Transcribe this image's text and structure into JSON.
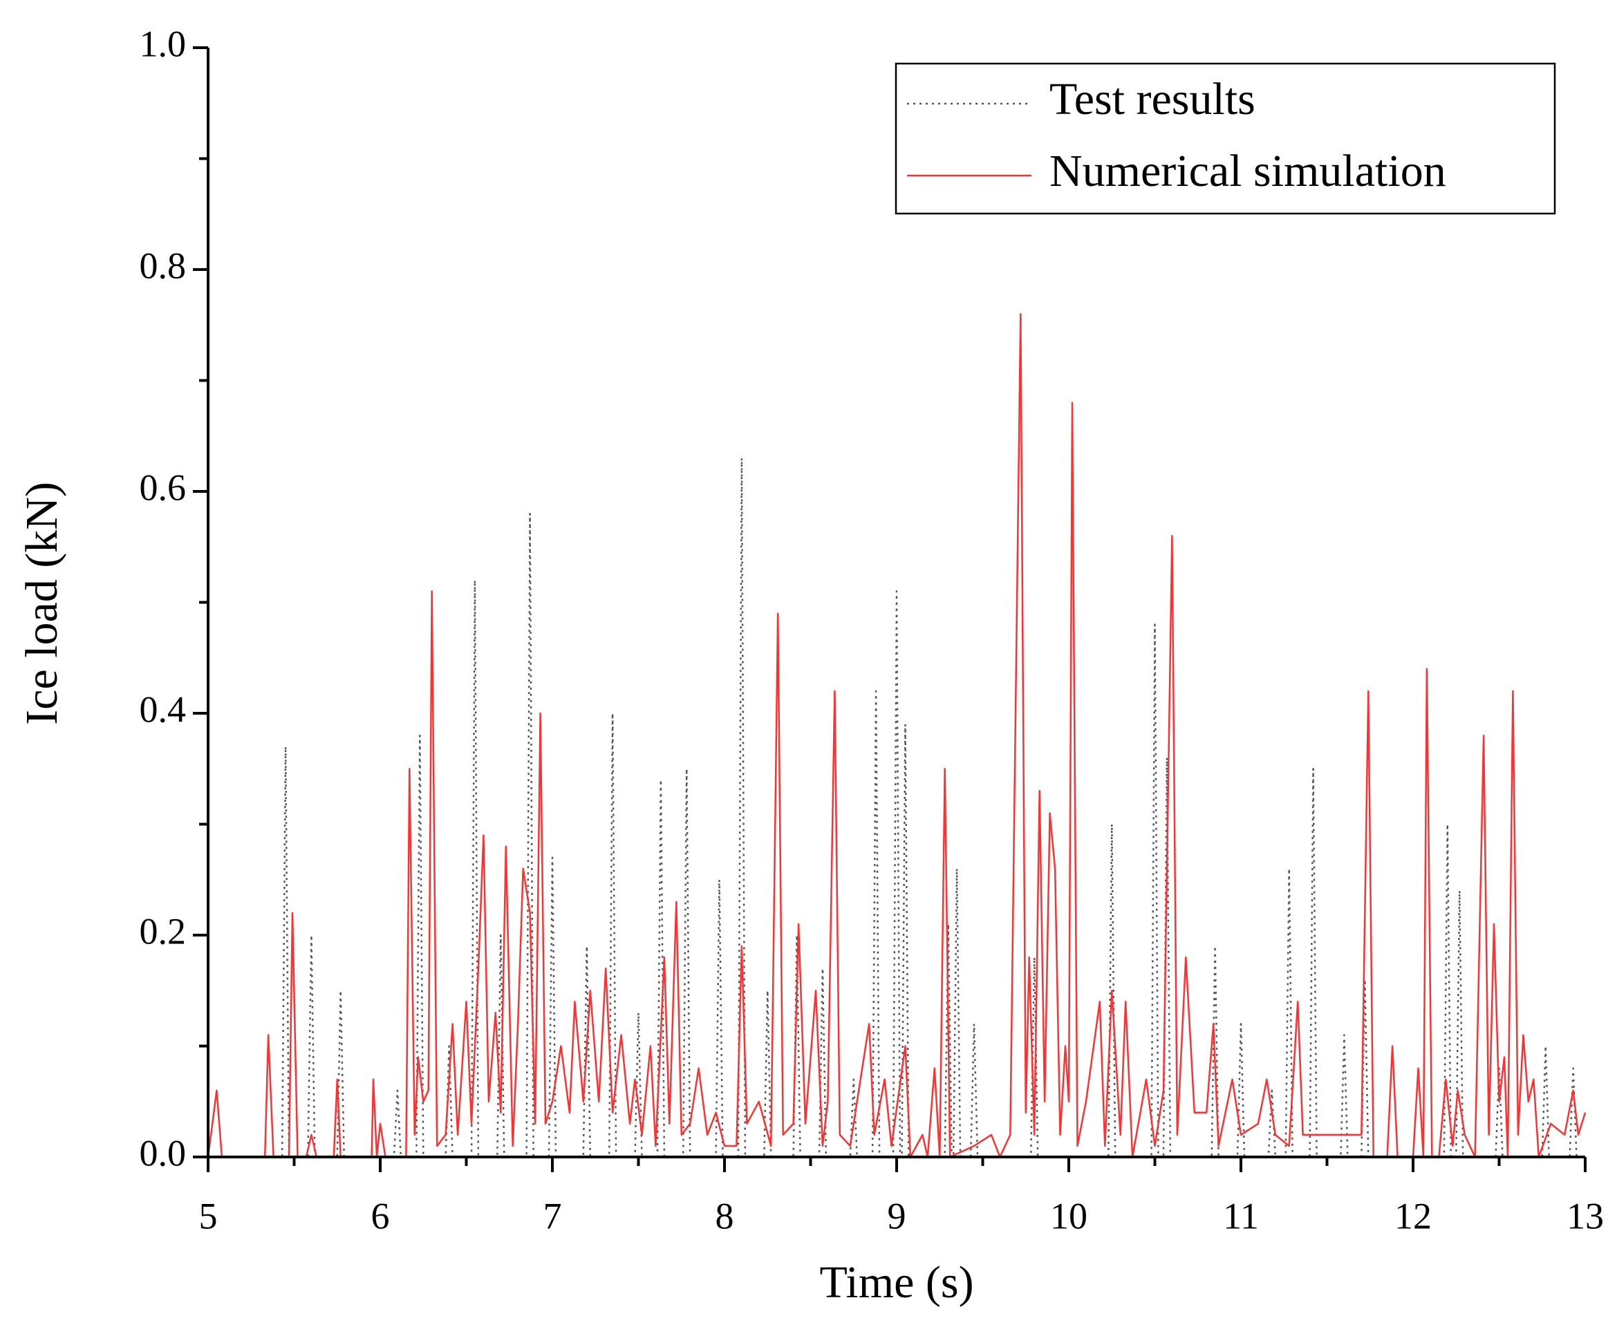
{
  "chart_data": {
    "type": "line",
    "xlabel": "Time (s)",
    "ylabel": "Ice load (kN)",
    "xlim": [
      5,
      13
    ],
    "xticks": [
      5,
      6,
      7,
      8,
      9,
      10,
      11,
      12,
      13
    ],
    "ylim": [
      0,
      1
    ],
    "yticks": [
      {
        "value": 0,
        "label": "0.0"
      },
      0.2,
      0.4,
      0.6,
      0.8,
      {
        "value": 1,
        "label": "1.0"
      }
    ],
    "legend": "upper right",
    "series": [
      {
        "name": "Test results",
        "color": "#555555",
        "linestyle": "dotted",
        "x": [
          5,
          5.43,
          5.45,
          5.47,
          5.58,
          5.6,
          5.62,
          5.75,
          5.77,
          5.79,
          6.08,
          6.1,
          6.12,
          6.21,
          6.23,
          6.25,
          6.38,
          6.4,
          6.42,
          6.53,
          6.55,
          6.57,
          6.68,
          6.7,
          6.72,
          6.85,
          6.87,
          6.89,
          6.98,
          7,
          7.02,
          7.18,
          7.2,
          7.22,
          7.33,
          7.35,
          7.37,
          7.48,
          7.5,
          7.52,
          7.61,
          7.63,
          7.65,
          7.76,
          7.78,
          7.8,
          7.95,
          7.97,
          7.99,
          8.08,
          8.1,
          8.12,
          8.23,
          8.25,
          8.27,
          8.4,
          8.42,
          8.44,
          8.55,
          8.57,
          8.59,
          8.73,
          8.75,
          8.77,
          8.86,
          8.88,
          8.9,
          8.98,
          9,
          9.02,
          9.03,
          9.05,
          9.07,
          9.28,
          9.3,
          9.32,
          9.33,
          9.35,
          9.37,
          9.43,
          9.45,
          9.47,
          9.78,
          9.8,
          9.82,
          10.23,
          10.25,
          10.27,
          10.48,
          10.5,
          10.52,
          10.55,
          10.57,
          10.59,
          10.83,
          10.85,
          10.87,
          10.98,
          11,
          11.02,
          11.16,
          11.18,
          11.2,
          11.26,
          11.28,
          11.3,
          11.4,
          11.42,
          11.44,
          11.58,
          11.6,
          11.62,
          11.7,
          11.72,
          11.74,
          12.18,
          12.2,
          12.22,
          12.25,
          12.27,
          12.29,
          12.48,
          12.5,
          12.52,
          12.75,
          12.77,
          12.79,
          12.91,
          12.93,
          12.95,
          13
        ],
        "values": [
          0,
          0,
          0.37,
          0,
          0,
          0.2,
          0,
          0,
          0.15,
          0,
          0,
          0.06,
          0,
          0,
          0.38,
          0,
          0,
          0.1,
          0,
          0,
          0.52,
          0,
          0,
          0.2,
          0,
          0,
          0.58,
          0,
          0,
          0.27,
          0,
          0,
          0.19,
          0,
          0,
          0.4,
          0,
          0,
          0.13,
          0,
          0,
          0.34,
          0,
          0,
          0.35,
          0,
          0,
          0.25,
          0,
          0,
          0.63,
          0,
          0,
          0.15,
          0,
          0,
          0.2,
          0,
          0,
          0.17,
          0,
          0,
          0.07,
          0,
          0,
          0.42,
          0,
          0,
          0.51,
          0,
          0,
          0.39,
          0,
          0,
          0.21,
          0,
          0,
          0.26,
          0,
          0,
          0.12,
          0,
          0,
          0.18,
          0,
          0,
          0.3,
          0,
          0,
          0.48,
          0,
          0,
          0.36,
          0,
          0,
          0.19,
          0,
          0,
          0.12,
          0,
          0,
          0.06,
          0,
          0,
          0.26,
          0,
          0,
          0.35,
          0,
          0,
          0.11,
          0,
          0,
          0.16,
          0,
          0,
          0.3,
          0,
          0,
          0.24,
          0,
          0,
          0.08,
          0,
          0,
          0.1,
          0,
          0,
          0.08,
          0,
          0
        ]
      },
      {
        "name": "Numerical simulation",
        "color": "#ff3030",
        "linestyle": "solid",
        "x": [
          5,
          5.05,
          5.08,
          5.33,
          5.35,
          5.38,
          5.47,
          5.49,
          5.52,
          5.57,
          5.6,
          5.63,
          5.73,
          5.75,
          5.77,
          5.95,
          5.96,
          5.98,
          6,
          6.03,
          6.15,
          6.17,
          6.2,
          6.22,
          6.25,
          6.28,
          6.3,
          6.33,
          6.38,
          6.42,
          6.45,
          6.5,
          6.53,
          6.57,
          6.6,
          6.63,
          6.67,
          6.7,
          6.73,
          6.77,
          6.8,
          6.83,
          6.87,
          6.9,
          6.93,
          6.96,
          7,
          7.05,
          7.1,
          7.13,
          7.18,
          7.22,
          7.27,
          7.31,
          7.35,
          7.4,
          7.45,
          7.48,
          7.52,
          7.57,
          7.6,
          7.65,
          7.68,
          7.72,
          7.75,
          7.8,
          7.85,
          7.9,
          7.95,
          8,
          8.07,
          8.1,
          8.13,
          8.2,
          8.27,
          8.31,
          8.34,
          8.4,
          8.43,
          8.47,
          8.53,
          8.57,
          8.6,
          8.64,
          8.67,
          8.73,
          8.8,
          8.84,
          8.87,
          8.93,
          8.97,
          9.05,
          9.08,
          9.15,
          9.18,
          9.22,
          9.25,
          9.28,
          9.31,
          9.45,
          9.55,
          9.6,
          9.66,
          9.72,
          9.75,
          9.77,
          9.8,
          9.83,
          9.86,
          9.89,
          9.92,
          9.95,
          9.98,
          10,
          10.02,
          10.05,
          10.1,
          10.18,
          10.21,
          10.25,
          10.3,
          10.33,
          10.37,
          10.45,
          10.5,
          10.55,
          10.6,
          10.63,
          10.68,
          10.73,
          10.8,
          10.84,
          10.87,
          10.95,
          11,
          11.1,
          11.15,
          11.2,
          11.28,
          11.33,
          11.36,
          11.5,
          11.7,
          11.74,
          11.77,
          11.85,
          11.88,
          11.91,
          12,
          12.03,
          12.06,
          12.08,
          12.11,
          12.15,
          12.19,
          12.23,
          12.26,
          12.3,
          12.36,
          12.41,
          12.44,
          12.47,
          12.5,
          12.53,
          12.55,
          12.58,
          12.61,
          12.64,
          12.67,
          12.7,
          12.73,
          12.8,
          12.88,
          12.93,
          12.96,
          13
        ],
        "values": [
          0,
          0.06,
          0,
          0,
          0.11,
          0,
          0,
          0.22,
          0,
          0,
          0.02,
          0,
          0,
          0.07,
          0,
          0,
          0.07,
          0,
          0.03,
          0,
          0,
          0.35,
          0.02,
          0.09,
          0.05,
          0.06,
          0.51,
          0.01,
          0.02,
          0.12,
          0.02,
          0.14,
          0.03,
          0.17,
          0.29,
          0.05,
          0.13,
          0.04,
          0.28,
          0.01,
          0.12,
          0.26,
          0.22,
          0.03,
          0.4,
          0.03,
          0.05,
          0.1,
          0.04,
          0.14,
          0.05,
          0.15,
          0.05,
          0.17,
          0.04,
          0.11,
          0.03,
          0.07,
          0.02,
          0.1,
          0.01,
          0.18,
          0.03,
          0.23,
          0.02,
          0.03,
          0.08,
          0.02,
          0.04,
          0.01,
          0.01,
          0.19,
          0.03,
          0.05,
          0.01,
          0.49,
          0.02,
          0.03,
          0.21,
          0.03,
          0.15,
          0.01,
          0.05,
          0.42,
          0.02,
          0.01,
          0.08,
          0.12,
          0.02,
          0.07,
          0.01,
          0.1,
          0,
          0.02,
          0,
          0.08,
          0,
          0.35,
          0,
          0.01,
          0.02,
          0,
          0.02,
          0.76,
          0.04,
          0.18,
          0.02,
          0.33,
          0.05,
          0.31,
          0.26,
          0.02,
          0.1,
          0.05,
          0.68,
          0.01,
          0.05,
          0.14,
          0.01,
          0.15,
          0.02,
          0.14,
          0,
          0.07,
          0.01,
          0.06,
          0.56,
          0.02,
          0.18,
          0.04,
          0.04,
          0.12,
          0.01,
          0.07,
          0.02,
          0.03,
          0.07,
          0.02,
          0.01,
          0.14,
          0.02,
          0.02,
          0.02,
          0.42,
          0,
          0,
          0.1,
          0,
          0,
          0.08,
          0,
          0.44,
          0,
          0,
          0.07,
          0.01,
          0.06,
          0.02,
          0,
          0.38,
          0.02,
          0.21,
          0.05,
          0.09,
          0,
          0.42,
          0.02,
          0.11,
          0.05,
          0.07,
          0,
          0.03,
          0.02,
          0.06,
          0.02,
          0.04
        ]
      }
    ]
  }
}
